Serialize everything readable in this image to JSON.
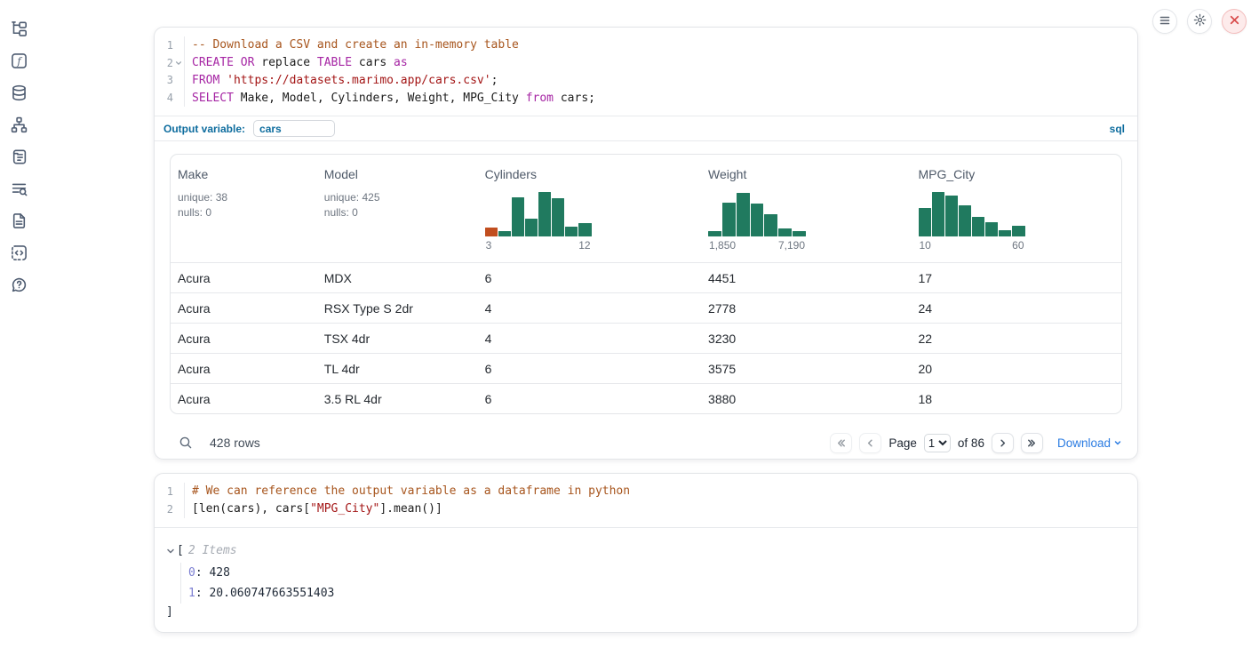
{
  "colors": {
    "accent_blue": "#0d6c9e",
    "link_blue": "#2b7ce2",
    "hist_green": "#207a5f",
    "hist_orange": "#c14e1f",
    "danger_red": "#d84b4b"
  },
  "topbar": {
    "buttons": [
      {
        "name": "menu",
        "icon": "hamburger-icon"
      },
      {
        "name": "settings",
        "icon": "gear-icon"
      },
      {
        "name": "shutdown",
        "icon": "close-icon"
      }
    ]
  },
  "sidebar": {
    "items": [
      {
        "name": "file-explorer",
        "icon": "file-tree-icon"
      },
      {
        "name": "variables",
        "icon": "function-square-icon"
      },
      {
        "name": "data-sources",
        "icon": "database-icon"
      },
      {
        "name": "dependencies",
        "icon": "network-icon"
      },
      {
        "name": "scratchpad",
        "icon": "scroll-icon"
      },
      {
        "name": "logs",
        "icon": "list-search-icon"
      },
      {
        "name": "documentation",
        "icon": "file-text-icon"
      },
      {
        "name": "snippets",
        "icon": "code-square-icon"
      },
      {
        "name": "help",
        "icon": "help-circle-icon"
      }
    ]
  },
  "sql_cell": {
    "code_lines": [
      {
        "num": "1",
        "fold": false,
        "tokens": [
          {
            "t": "-- Download a CSV and create an in-memory table",
            "c": "comment"
          }
        ]
      },
      {
        "num": "2",
        "fold": true,
        "tokens": [
          {
            "t": "CREATE",
            "c": "kw"
          },
          {
            "t": " ",
            "c": "plain"
          },
          {
            "t": "OR",
            "c": "kw"
          },
          {
            "t": " replace ",
            "c": "plain"
          },
          {
            "t": "TABLE",
            "c": "kw"
          },
          {
            "t": " cars ",
            "c": "plain"
          },
          {
            "t": "as",
            "c": "kw"
          }
        ]
      },
      {
        "num": "3",
        "fold": false,
        "tokens": [
          {
            "t": "FROM",
            "c": "kw"
          },
          {
            "t": " ",
            "c": "plain"
          },
          {
            "t": "'https://datasets.marimo.app/cars.csv'",
            "c": "str"
          },
          {
            "t": ";",
            "c": "plain"
          }
        ]
      },
      {
        "num": "4",
        "fold": false,
        "tokens": [
          {
            "t": "SELECT",
            "c": "kw"
          },
          {
            "t": " Make, Model, Cylinders, Weight, MPG_City ",
            "c": "plain"
          },
          {
            "t": "from",
            "c": "kw"
          },
          {
            "t": " cars;",
            "c": "plain"
          }
        ]
      }
    ],
    "output_variable": {
      "label": "Output variable:",
      "value": "cars"
    },
    "language_badge": "sql",
    "table": {
      "columns": [
        {
          "header": "Make",
          "stats": [
            "unique: 38",
            "nulls: 0"
          ]
        },
        {
          "header": "Model",
          "stats": [
            "unique: 425",
            "nulls: 0"
          ]
        },
        {
          "header": "Cylinders",
          "histogram": {
            "values": [
              0.2,
              0.12,
              0.85,
              0.38,
              0.97,
              0.82,
              0.21,
              0.28
            ],
            "highlight_first": true,
            "labels": [
              "3",
              "12"
            ]
          }
        },
        {
          "header": "Weight",
          "histogram": {
            "values": [
              0.11,
              0.74,
              0.95,
              0.72,
              0.48,
              0.17,
              0.11
            ],
            "highlight_first": false,
            "labels": [
              "1,850",
              "7,190"
            ]
          }
        },
        {
          "header": "MPG_City",
          "histogram": {
            "values": [
              0.62,
              0.97,
              0.88,
              0.67,
              0.42,
              0.3,
              0.13,
              0.23
            ],
            "highlight_first": false,
            "labels": [
              "10",
              "60"
            ]
          }
        }
      ],
      "rows": [
        [
          "Acura",
          "MDX",
          "6",
          "4451",
          "17"
        ],
        [
          "Acura",
          "RSX Type S 2dr",
          "4",
          "2778",
          "24"
        ],
        [
          "Acura",
          "TSX 4dr",
          "4",
          "3230",
          "22"
        ],
        [
          "Acura",
          "TL 4dr",
          "6",
          "3575",
          "20"
        ],
        [
          "Acura",
          "3.5 RL 4dr",
          "6",
          "3880",
          "18"
        ]
      ]
    },
    "footer": {
      "rows_label": "428 rows",
      "page_label": "Page",
      "page_value": "1",
      "of_label": "of 86",
      "download_label": "Download"
    }
  },
  "python_cell": {
    "code_lines": [
      {
        "num": "1",
        "fold": false,
        "tokens": [
          {
            "t": "# We can reference the output variable as a dataframe in python",
            "c": "comment"
          }
        ]
      },
      {
        "num": "2",
        "fold": false,
        "tokens": [
          {
            "t": "[len(cars), cars[",
            "c": "plain"
          },
          {
            "t": "\"MPG_City\"",
            "c": "str"
          },
          {
            "t": "].mean()]",
            "c": "plain"
          }
        ]
      }
    ],
    "output": {
      "open_bracket": "[",
      "items_label": "2 Items",
      "entries": [
        {
          "key": "0",
          "value": "428"
        },
        {
          "key": "1",
          "value": "20.060747663551403"
        }
      ],
      "close_bracket": "]"
    }
  }
}
